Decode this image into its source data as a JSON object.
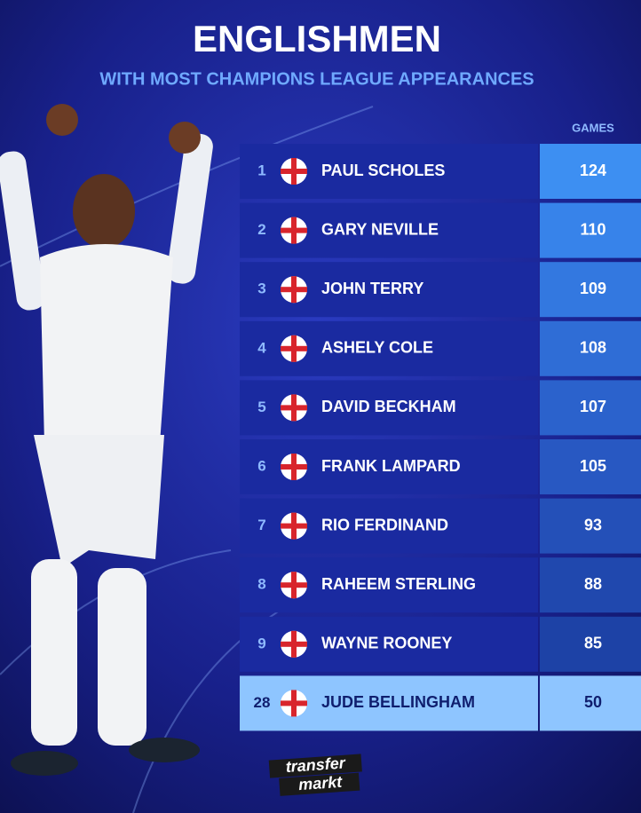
{
  "header": {
    "title": "ENGLISHMEN",
    "subtitle": "WITH MOST CHAMPIONS LEAGUE APPEARANCES"
  },
  "table": {
    "column_header": "GAMES",
    "rows": [
      [
        1,
        "PAUL SCHOLES",
        124
      ],
      [
        2,
        "GARY NEVILLE",
        110
      ],
      [
        3,
        "JOHN TERRY",
        109
      ],
      [
        4,
        "ASHELY COLE",
        108
      ],
      [
        5,
        "DAVID BECKHAM",
        107
      ],
      [
        6,
        "FRANK LAMPARD",
        105
      ],
      [
        7,
        "RIO FERDINAND",
        93
      ],
      [
        8,
        "RAHEEM STERLING",
        88
      ],
      [
        9,
        "WAYNE ROONEY",
        85
      ],
      [
        28,
        "JUDE BELLINGHAM",
        50
      ]
    ]
  },
  "footer": {
    "logo_top": "transfer",
    "logo_bottom": "markt"
  }
}
